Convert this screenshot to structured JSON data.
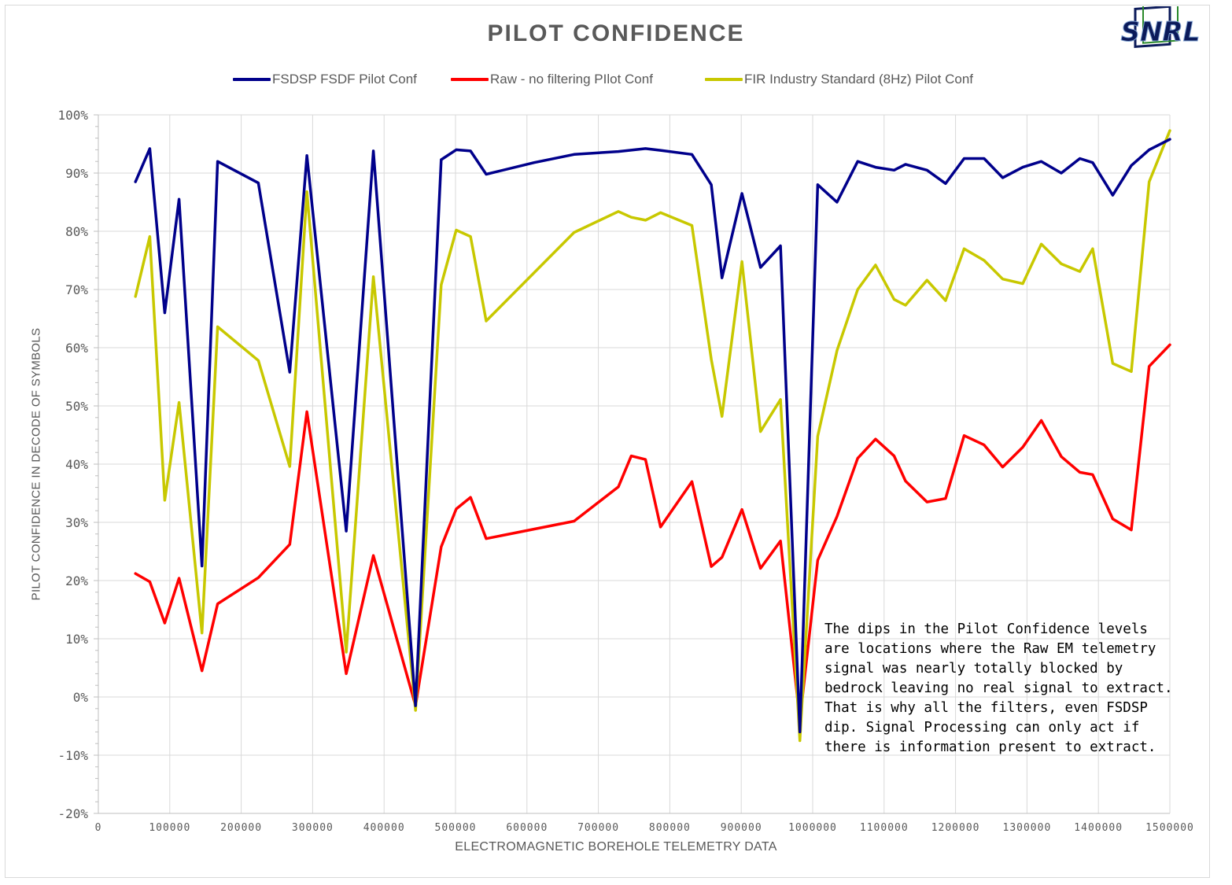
{
  "chart_data": {
    "type": "line",
    "title": "PILOT CONFIDENCE",
    "xlabel": "ELECTROMAGNETIC BOREHOLE TELEMETRY DATA",
    "ylabel": "PILOT CONFIDENCE IN DECODE OF SYMBOLS",
    "xlim": [
      0,
      1500000
    ],
    "ylim": [
      -20,
      100
    ],
    "x_ticks": [
      "0",
      "100000",
      "200000",
      "300000",
      "400000",
      "500000",
      "600000",
      "700000",
      "800000",
      "900000",
      "1000000",
      "1100000",
      "1200000",
      "1300000",
      "1400000",
      "1500000"
    ],
    "y_ticks": [
      "-20%",
      "-10%",
      "0%",
      "10%",
      "20%",
      "30%",
      "40%",
      "50%",
      "60%",
      "70%",
      "80%",
      "90%",
      "100%"
    ],
    "grid": true,
    "legend_position": "top",
    "series": [
      {
        "name": "FSDSP FSDF Pilot Conf",
        "color": "#00008B",
        "points": [
          [
            52000,
            88.5
          ],
          [
            72000,
            94.2
          ],
          [
            93000,
            66
          ],
          [
            113000,
            85.5
          ],
          [
            145000,
            22.5
          ],
          [
            167000,
            92
          ],
          [
            224000,
            88.3
          ],
          [
            268000,
            55.8
          ],
          [
            292000,
            93
          ],
          [
            347000,
            28.5
          ],
          [
            385000,
            93.8
          ],
          [
            444000,
            -1.5
          ],
          [
            480000,
            92.3
          ],
          [
            501000,
            94
          ],
          [
            521000,
            93.8
          ],
          [
            543000,
            89.8
          ],
          [
            610000,
            91.8
          ],
          [
            666000,
            93.2
          ],
          [
            728000,
            93.7
          ],
          [
            766000,
            94.2
          ],
          [
            787000,
            93.9
          ],
          [
            831000,
            93.2
          ],
          [
            858000,
            88
          ],
          [
            873000,
            72
          ],
          [
            901000,
            86.5
          ],
          [
            927000,
            73.8
          ],
          [
            955000,
            77.5
          ],
          [
            982000,
            -6
          ],
          [
            1007000,
            88
          ],
          [
            1034000,
            85
          ],
          [
            1063000,
            92
          ],
          [
            1088000,
            91
          ],
          [
            1114000,
            90.5
          ],
          [
            1130000,
            91.5
          ],
          [
            1160000,
            90.5
          ],
          [
            1186000,
            88.2
          ],
          [
            1212000,
            92.5
          ],
          [
            1240000,
            92.5
          ],
          [
            1266000,
            89.2
          ],
          [
            1294000,
            91
          ],
          [
            1320000,
            92
          ],
          [
            1348000,
            90
          ],
          [
            1374000,
            92.5
          ],
          [
            1392000,
            91.8
          ],
          [
            1420000,
            86.2
          ],
          [
            1446000,
            91.3
          ],
          [
            1471000,
            94
          ],
          [
            1500000,
            95.8
          ]
        ]
      },
      {
        "name": "Raw - no filtering PIlot Conf",
        "color": "#FF0000",
        "points": [
          [
            52000,
            21.2
          ],
          [
            72000,
            19.8
          ],
          [
            93000,
            12.7
          ],
          [
            113000,
            20.4
          ],
          [
            145000,
            4.5
          ],
          [
            167000,
            16
          ],
          [
            224000,
            20.5
          ],
          [
            268000,
            26.2
          ],
          [
            292000,
            49
          ],
          [
            347000,
            4
          ],
          [
            385000,
            24.3
          ],
          [
            444000,
            -1.5
          ],
          [
            480000,
            25.8
          ],
          [
            501000,
            32.3
          ],
          [
            521000,
            34.3
          ],
          [
            543000,
            27.2
          ],
          [
            666000,
            30.2
          ],
          [
            728000,
            36.1
          ],
          [
            746000,
            41.4
          ],
          [
            766000,
            40.8
          ],
          [
            787000,
            29.2
          ],
          [
            831000,
            37
          ],
          [
            858000,
            22.4
          ],
          [
            873000,
            24
          ],
          [
            901000,
            32.2
          ],
          [
            927000,
            22.1
          ],
          [
            955000,
            26.8
          ],
          [
            982000,
            -4
          ],
          [
            1007000,
            23.5
          ],
          [
            1034000,
            31
          ],
          [
            1063000,
            41
          ],
          [
            1088000,
            44.3
          ],
          [
            1114000,
            41.4
          ],
          [
            1130000,
            37.1
          ],
          [
            1160000,
            33.5
          ],
          [
            1186000,
            34.1
          ],
          [
            1212000,
            44.9
          ],
          [
            1240000,
            43.3
          ],
          [
            1266000,
            39.5
          ],
          [
            1294000,
            42.9
          ],
          [
            1320000,
            47.5
          ],
          [
            1348000,
            41.3
          ],
          [
            1374000,
            38.6
          ],
          [
            1392000,
            38.2
          ],
          [
            1420000,
            30.6
          ],
          [
            1446000,
            28.7
          ],
          [
            1471000,
            56.8
          ],
          [
            1500000,
            60.5
          ]
        ]
      },
      {
        "name": "FIR Industry Standard (8Hz) Pilot Conf",
        "color": "#C8C800",
        "points": [
          [
            52000,
            68.8
          ],
          [
            72000,
            79.1
          ],
          [
            93000,
            33.8
          ],
          [
            113000,
            50.6
          ],
          [
            145000,
            11
          ],
          [
            167000,
            63.6
          ],
          [
            224000,
            57.8
          ],
          [
            268000,
            39.6
          ],
          [
            292000,
            86.8
          ],
          [
            347000,
            7.7
          ],
          [
            385000,
            72.2
          ],
          [
            444000,
            -2.3
          ],
          [
            480000,
            70.8
          ],
          [
            501000,
            80.2
          ],
          [
            521000,
            79.1
          ],
          [
            543000,
            64.6
          ],
          [
            666000,
            79.8
          ],
          [
            728000,
            83.4
          ],
          [
            746000,
            82.4
          ],
          [
            766000,
            81.9
          ],
          [
            787000,
            83.2
          ],
          [
            831000,
            81
          ],
          [
            858000,
            58
          ],
          [
            873000,
            48.2
          ],
          [
            901000,
            74.8
          ],
          [
            927000,
            45.6
          ],
          [
            955000,
            51.1
          ],
          [
            982000,
            -7.5
          ],
          [
            1007000,
            44.8
          ],
          [
            1034000,
            59.5
          ],
          [
            1063000,
            70
          ],
          [
            1088000,
            74.2
          ],
          [
            1114000,
            68.3
          ],
          [
            1130000,
            67.3
          ],
          [
            1160000,
            71.6
          ],
          [
            1186000,
            68.1
          ],
          [
            1212000,
            77
          ],
          [
            1240000,
            75
          ],
          [
            1266000,
            71.8
          ],
          [
            1294000,
            71
          ],
          [
            1320000,
            77.8
          ],
          [
            1348000,
            74.4
          ],
          [
            1374000,
            73.1
          ],
          [
            1392000,
            77
          ],
          [
            1420000,
            57.3
          ],
          [
            1446000,
            55.9
          ],
          [
            1471000,
            88.5
          ],
          [
            1500000,
            97.3
          ]
        ]
      }
    ],
    "annotation": "The dips in the Pilot Confidence levels\nare locations where the Raw EM telemetry\nsignal was nearly totally blocked by\nbedrock leaving no real signal to extract.\nThat is why all the filters, even FSDSP\ndip.  Signal Processing can only act if\nthere is information present to extract."
  },
  "logo": {
    "text": "SNRL"
  }
}
